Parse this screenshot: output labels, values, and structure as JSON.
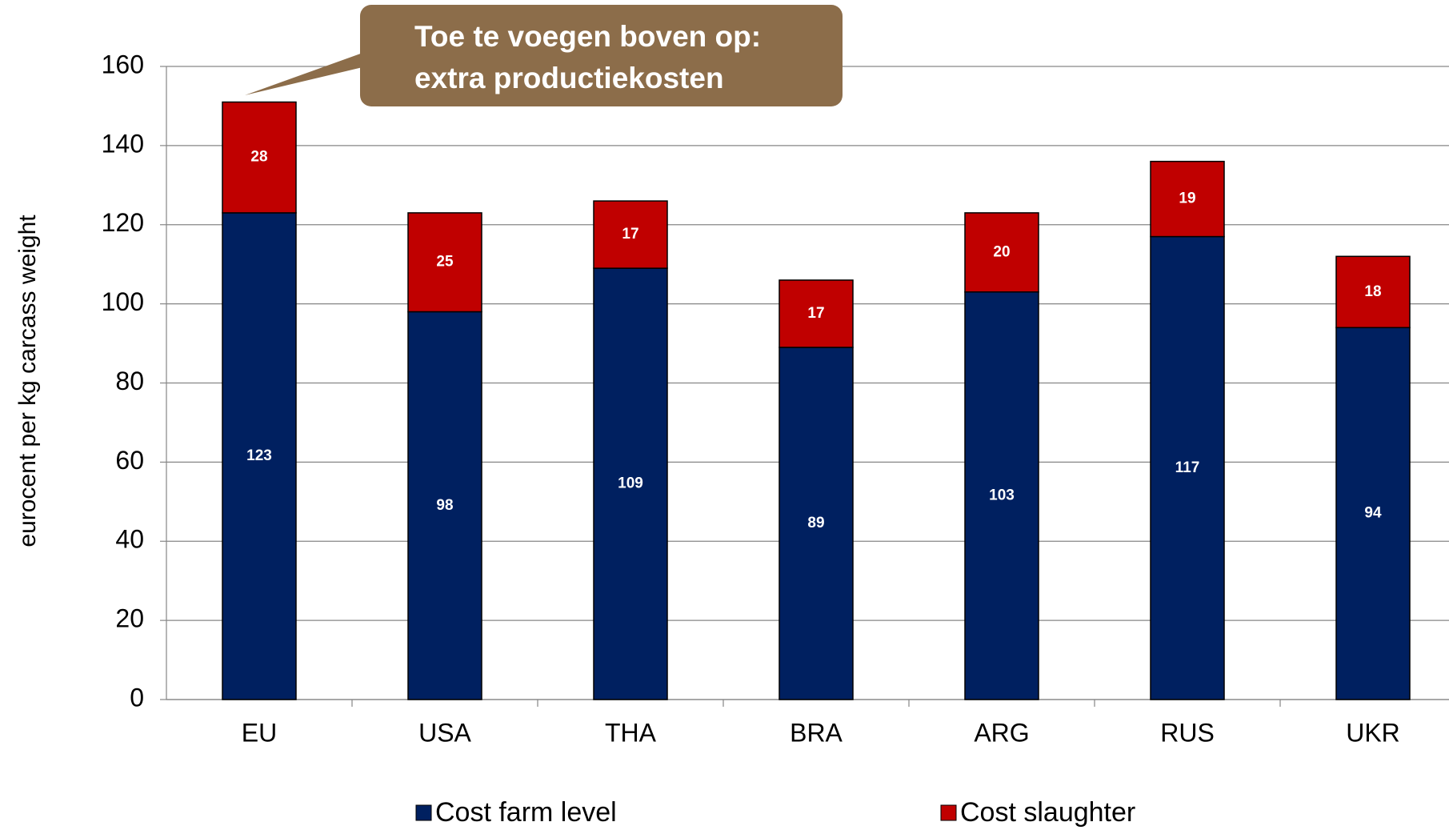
{
  "chart_data": {
    "type": "stacked_bar",
    "annotation": [
      "Toe te voegen boven op:",
      "extra productiekosten"
    ],
    "ylabel": "eurocent per kg carcass weight",
    "categories": [
      "EU",
      "USA",
      "THA",
      "BRA",
      "ARG",
      "RUS",
      "UKR"
    ],
    "series": [
      {
        "name": "Cost farm level",
        "color": "#002060",
        "values": [
          123,
          98,
          109,
          89,
          103,
          117,
          94
        ]
      },
      {
        "name": "Cost slaughter",
        "color": "#c00000",
        "values": [
          28,
          25,
          17,
          17,
          20,
          19,
          18
        ]
      }
    ],
    "ylim": [
      0,
      160
    ],
    "yticks": [
      0,
      20,
      40,
      60,
      80,
      100,
      120,
      140,
      160
    ],
    "grid": true,
    "legend": "bottom"
  }
}
